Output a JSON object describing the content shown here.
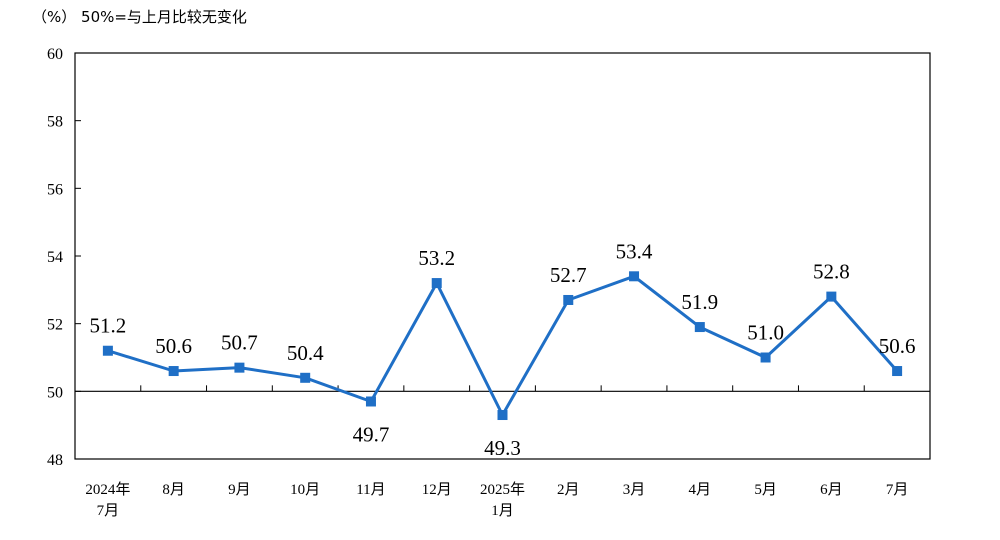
{
  "note": "（%） 50%=与上月比较无变化",
  "chart_data": {
    "type": "line",
    "categories": [
      [
        "2024年",
        "7月"
      ],
      [
        "8月"
      ],
      [
        "9月"
      ],
      [
        "10月"
      ],
      [
        "11月"
      ],
      [
        "12月"
      ],
      [
        "2025年",
        "1月"
      ],
      [
        "2月"
      ],
      [
        "3月"
      ],
      [
        "4月"
      ],
      [
        "5月"
      ],
      [
        "6月"
      ],
      [
        "7月"
      ]
    ],
    "series": [
      {
        "values": [
          51.2,
          50.6,
          50.7,
          50.4,
          49.7,
          53.2,
          49.3,
          52.7,
          53.4,
          51.9,
          51.0,
          52.8,
          50.6
        ]
      }
    ],
    "data_labels": [
      "51.2",
      "50.6",
      "50.7",
      "50.4",
      "49.7",
      "53.2",
      "49.3",
      "52.7",
      "53.4",
      "51.9",
      "51.0",
      "52.8",
      "50.6"
    ],
    "label_below": [
      false,
      false,
      false,
      false,
      true,
      false,
      true,
      false,
      false,
      false,
      false,
      false,
      false
    ],
    "ylim": [
      48,
      60
    ],
    "yticks": [
      48,
      50,
      52,
      54,
      56,
      58,
      60
    ],
    "reference_line": 50,
    "line_color": "#1f6fc6",
    "marker": "square",
    "grid": false,
    "legend": "none"
  }
}
